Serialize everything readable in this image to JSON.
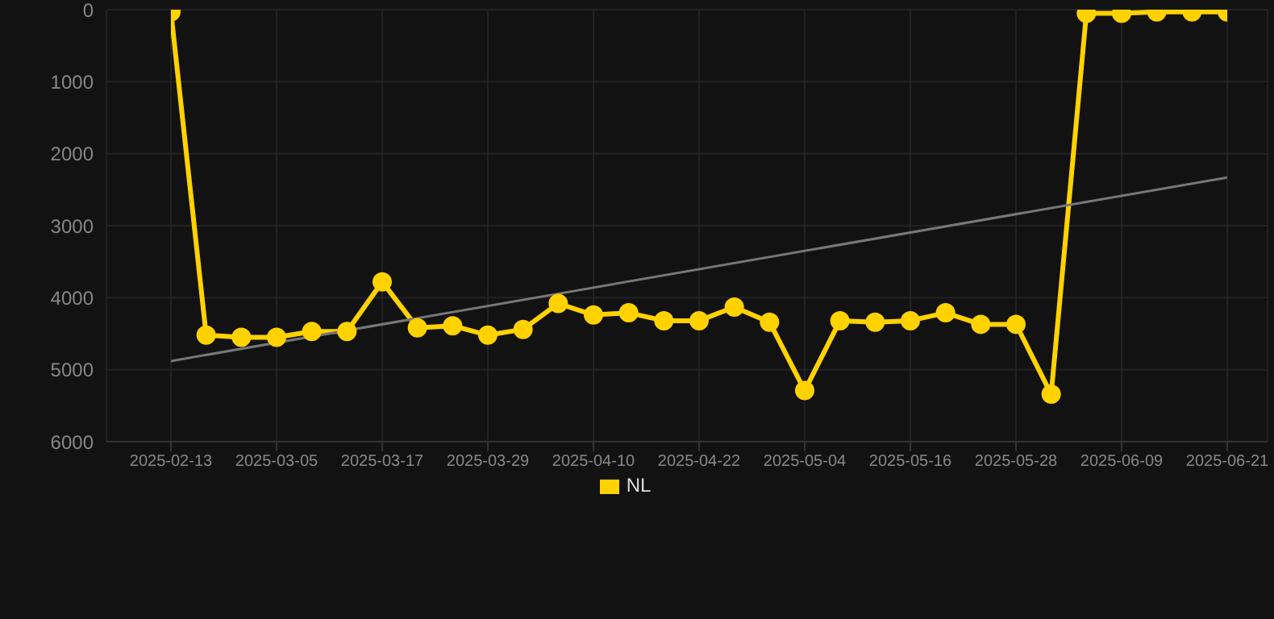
{
  "chart_data": {
    "type": "line",
    "categories": [
      "2025-02-13",
      null,
      null,
      "2025-03-05",
      null,
      null,
      "2025-03-17",
      null,
      null,
      "2025-03-29",
      null,
      null,
      "2025-04-10",
      null,
      null,
      "2025-04-22",
      null,
      null,
      "2025-05-04",
      null,
      null,
      "2025-05-16",
      null,
      null,
      "2025-05-28",
      null,
      null,
      "2025-06-09",
      null,
      null,
      "2025-06-21"
    ],
    "series": [
      {
        "name": "NL",
        "color": "#ffd200",
        "marker": "circle",
        "values": [
          30,
          4520,
          4550,
          4550,
          4470,
          4470,
          3780,
          4420,
          4390,
          4520,
          4440,
          4080,
          4240,
          4210,
          4320,
          4320,
          4130,
          4340,
          5290,
          4320,
          4340,
          4320,
          4210,
          4370,
          4370,
          5340,
          50,
          50,
          30,
          30,
          30
        ]
      },
      {
        "type": "line",
        "color": "#777777",
        "marker": "none",
        "values": [
          4880,
          null,
          null,
          null,
          null,
          null,
          null,
          null,
          null,
          null,
          null,
          null,
          null,
          null,
          null,
          null,
          null,
          null,
          null,
          null,
          null,
          null,
          null,
          null,
          null,
          null,
          null,
          null,
          null,
          null,
          2330
        ]
      }
    ],
    "ylim": [
      6000,
      0
    ],
    "yticks": [
      0,
      1000,
      2000,
      3000,
      4000,
      5000,
      6000
    ],
    "grid": true,
    "legend": "bottom"
  }
}
